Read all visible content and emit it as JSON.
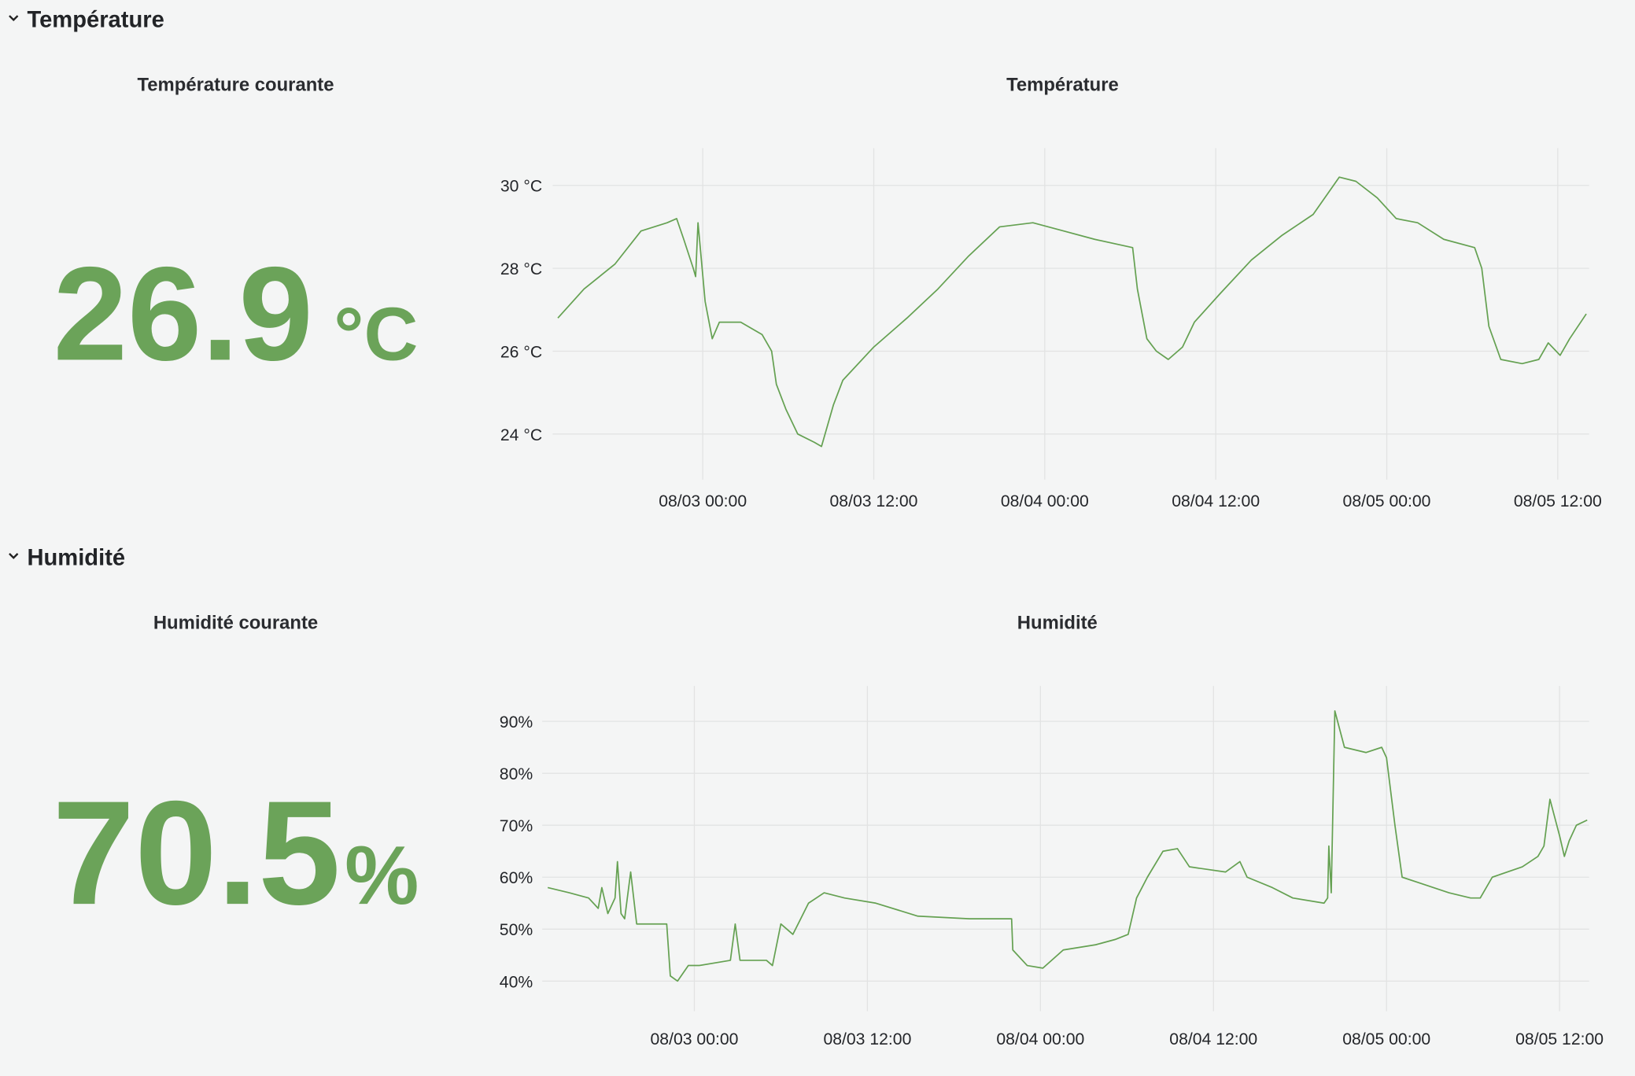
{
  "sections": [
    {
      "title": "Température",
      "stat": {
        "title": "Température courante",
        "value": 26.9,
        "unit": "°C"
      }
    },
    {
      "title": "Humidité",
      "stat": {
        "title": "Humidité courante",
        "value": 70.5,
        "unit": "%"
      }
    }
  ],
  "chart_data": [
    {
      "type": "line",
      "title": "Température",
      "color": "#65a152",
      "grid": true,
      "xlim": [
        "08/02 13:28",
        "08/05 14:12"
      ],
      "xticks": [
        "08/03 00:00",
        "08/03 12:00",
        "08/04 00:00",
        "08/04 12:00",
        "08/05 00:00",
        "08/05 12:00"
      ],
      "ylim": [
        22.9,
        30.9
      ],
      "yticks": [
        {
          "value": 24,
          "label": "24 °C"
        },
        {
          "value": 26,
          "label": "26 °C"
        },
        {
          "value": 28,
          "label": "28 °C"
        },
        {
          "value": 30,
          "label": "30 °C"
        }
      ],
      "x": [
        "08/02 13:50",
        "08/02 15:40",
        "08/02 17:50",
        "08/02 19:40",
        "08/02 21:30",
        "08/02 22:10",
        "08/02 22:40",
        "08/02 23:20",
        "08/02 23:30",
        "08/02 23:40",
        "08/03 00:10",
        "08/03 00:40",
        "08/03 01:10",
        "08/03 02:40",
        "08/03 04:10",
        "08/03 04:50",
        "08/03 05:10",
        "08/03 05:50",
        "08/03 06:40",
        "08/03 07:50",
        "08/03 08:20",
        "08/03 09:10",
        "08/03 09:50",
        "08/03 12:00",
        "08/03 14:20",
        "08/03 16:30",
        "08/03 18:40",
        "08/03 20:50",
        "08/03 23:10",
        "08/04 01:20",
        "08/04 03:30",
        "08/04 06:10",
        "08/04 06:30",
        "08/04 07:10",
        "08/04 07:50",
        "08/04 08:40",
        "08/04 09:40",
        "08/04 10:30",
        "08/04 12:20",
        "08/04 14:30",
        "08/04 16:40",
        "08/04 18:50",
        "08/04 20:40",
        "08/04 21:50",
        "08/04 23:20",
        "08/05 00:40",
        "08/05 02:10",
        "08/05 04:00",
        "08/05 06:10",
        "08/05 06:40",
        "08/05 07:10",
        "08/05 08:00",
        "08/05 09:30",
        "08/05 10:40",
        "08/05 11:20",
        "08/05 12:10",
        "08/05 12:50",
        "08/05 14:00"
      ],
      "values": [
        26.8,
        27.5,
        28.1,
        28.9,
        29.1,
        29.2,
        28.7,
        28.0,
        27.8,
        29.1,
        27.2,
        26.3,
        26.7,
        26.7,
        26.4,
        26.0,
        25.2,
        24.6,
        24.0,
        23.8,
        23.7,
        24.7,
        25.3,
        26.1,
        26.8,
        27.5,
        28.3,
        29.0,
        29.1,
        28.9,
        28.7,
        28.5,
        27.5,
        26.3,
        26.0,
        25.8,
        26.1,
        26.7,
        27.4,
        28.2,
        28.8,
        29.3,
        30.2,
        30.1,
        29.7,
        29.2,
        29.1,
        28.7,
        28.5,
        28.0,
        26.6,
        25.8,
        25.7,
        25.8,
        26.2,
        25.9,
        26.3,
        26.9
      ]
    },
    {
      "type": "line",
      "title": "Humidité",
      "color": "#65a152",
      "grid": true,
      "xlim": [
        "08/02 13:27",
        "08/05 14:03"
      ],
      "xticks": [
        "08/03 00:00",
        "08/03 12:00",
        "08/04 00:00",
        "08/04 12:00",
        "08/05 00:00",
        "08/05 12:00"
      ],
      "ylim": [
        34.2,
        96.8
      ],
      "yticks": [
        {
          "value": 40,
          "label": "40%"
        },
        {
          "value": 50,
          "label": "50%"
        },
        {
          "value": 60,
          "label": "60%"
        },
        {
          "value": 70,
          "label": "70%"
        },
        {
          "value": 80,
          "label": "80%"
        },
        {
          "value": 90,
          "label": "90%"
        }
      ],
      "x": [
        "08/02 13:50",
        "08/02 15:20",
        "08/02 16:40",
        "08/02 17:20",
        "08/02 17:35",
        "08/02 18:00",
        "08/02 18:30",
        "08/02 18:40",
        "08/02 18:55",
        "08/02 19:10",
        "08/02 19:35",
        "08/02 20:00",
        "08/02 22:05",
        "08/02 22:20",
        "08/02 22:50",
        "08/02 23:35",
        "08/03 00:20",
        "08/03 02:30",
        "08/03 02:50",
        "08/03 03:10",
        "08/03 05:00",
        "08/03 05:25",
        "08/03 06:00",
        "08/03 06:50",
        "08/03 07:55",
        "08/03 09:00",
        "08/03 10:25",
        "08/03 12:35",
        "08/03 15:30",
        "08/03 19:05",
        "08/03 22:00",
        "08/03 22:05",
        "08/03 23:05",
        "08/04 00:10",
        "08/04 01:35",
        "08/04 03:50",
        "08/04 05:10",
        "08/04 06:05",
        "08/04 06:40",
        "08/04 07:25",
        "08/04 08:30",
        "08/04 09:30",
        "08/04 10:20",
        "08/04 12:50",
        "08/04 13:50",
        "08/04 14:20",
        "08/04 16:05",
        "08/04 17:30",
        "08/04 19:40",
        "08/04 19:55",
        "08/04 20:00",
        "08/04 20:10",
        "08/04 20:25",
        "08/04 21:05",
        "08/04 22:35",
        "08/04 23:40",
        "08/05 00:00",
        "08/05 00:35",
        "08/05 01:05",
        "08/05 02:10",
        "08/05 04:20",
        "08/05 05:50",
        "08/05 06:30",
        "08/05 07:20",
        "08/05 09:25",
        "08/05 10:30",
        "08/05 10:55",
        "08/05 11:20",
        "08/05 12:00",
        "08/05 12:20",
        "08/05 12:40",
        "08/05 13:10",
        "08/05 13:55"
      ],
      "values": [
        58,
        57,
        56,
        54,
        58,
        53,
        56,
        63,
        53,
        52,
        61,
        51,
        51,
        41,
        40,
        43,
        43,
        44,
        51,
        44,
        44,
        43,
        51,
        49,
        55,
        57,
        56,
        55,
        52.5,
        52,
        52,
        46,
        43,
        42.5,
        46,
        47,
        48,
        49,
        56,
        60,
        65,
        65.5,
        62,
        61,
        63,
        60,
        58,
        56,
        55,
        56,
        66,
        57,
        92,
        85,
        84,
        85,
        83,
        70,
        60,
        59,
        57,
        56,
        56,
        60,
        62,
        64,
        66,
        75,
        68,
        64,
        67,
        70,
        71
      ]
    }
  ]
}
